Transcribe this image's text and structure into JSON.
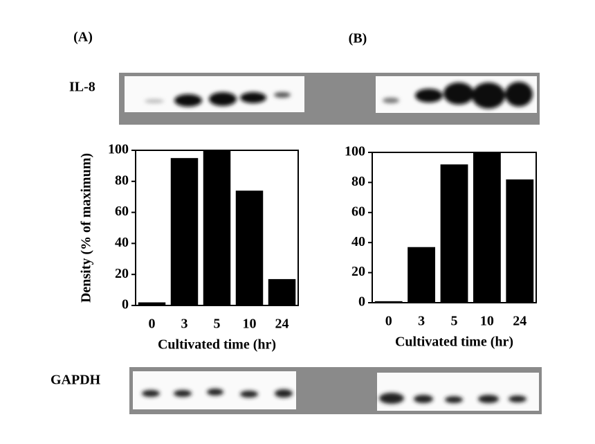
{
  "chart_data": [
    {
      "type": "bar",
      "title": "(A)",
      "categories": [
        "0",
        "3",
        "5",
        "10",
        "24"
      ],
      "values": [
        2,
        95,
        100,
        74,
        17
      ],
      "color": "#000000",
      "ylim": [
        0,
        100
      ],
      "yticks": [
        0,
        20,
        40,
        60,
        80,
        100
      ],
      "xlabel": "Cultivated time (hr)",
      "ylabel": "Density (% of  maximum)"
    },
    {
      "type": "bar",
      "title": "(B)",
      "categories": [
        "0",
        "3",
        "5",
        "10",
        "24"
      ],
      "values": [
        1,
        37,
        92,
        100,
        82
      ],
      "color": "#000000",
      "ylim": [
        0,
        100
      ],
      "yticks": [
        0,
        20,
        40,
        60,
        80,
        100
      ],
      "xlabel": "Cultivated time (hr)"
    }
  ],
  "blots": [
    "IL-8",
    "GAPDH"
  ]
}
